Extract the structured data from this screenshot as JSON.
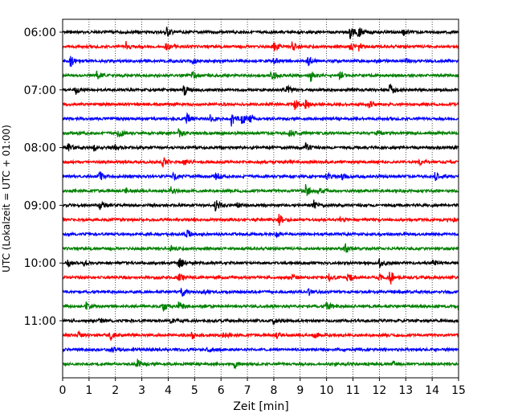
{
  "chart_data": {
    "type": "line",
    "subtype": "helicorder-seismogram",
    "title": "",
    "xlabel": "Zeit  [min]",
    "ylabel": "UTC (Lokalzeit = UTC + 01:00)",
    "xlim": [
      0,
      15
    ],
    "xticks": [
      0,
      1,
      2,
      3,
      4,
      5,
      6,
      7,
      8,
      9,
      10,
      11,
      12,
      13,
      14,
      15
    ],
    "xtick_labels": [
      "0",
      "1",
      "2",
      "3",
      "4",
      "5",
      "6",
      "7",
      "8",
      "9",
      "10",
      "11",
      "12",
      "13",
      "14",
      "15"
    ],
    "ytick_labels": [
      "06:00",
      "07:00",
      "08:00",
      "09:00",
      "10:00",
      "11:00"
    ],
    "ytick_trace_index": [
      0,
      4,
      8,
      12,
      16,
      20
    ],
    "grid": {
      "vertical": true,
      "style": "dotted"
    },
    "trace_interval_minutes": 15,
    "color_cycle": [
      "#000000",
      "#ff0000",
      "#0000ff",
      "#008000"
    ],
    "traces": [
      {
        "start": "06:00",
        "color": "#000000",
        "events": [
          {
            "t": 3.9,
            "a": 1.0
          },
          {
            "t": 10.9,
            "a": 1.1
          },
          {
            "t": 11.2,
            "a": 0.7
          },
          {
            "t": 12.9,
            "a": 0.5
          }
        ]
      },
      {
        "start": "06:15",
        "color": "#ff0000",
        "events": [
          {
            "t": 2.4,
            "a": 0.6
          },
          {
            "t": 3.9,
            "a": 0.6
          },
          {
            "t": 8.0,
            "a": 0.7
          },
          {
            "t": 8.7,
            "a": 0.8
          },
          {
            "t": 10.9,
            "a": 0.6
          },
          {
            "t": 11.2,
            "a": 0.6
          }
        ]
      },
      {
        "start": "06:30",
        "color": "#0000ff",
        "events": [
          {
            "t": 0.3,
            "a": 0.8
          },
          {
            "t": 4.9,
            "a": 0.5
          },
          {
            "t": 8.0,
            "a": 0.5
          },
          {
            "t": 9.3,
            "a": 0.9
          },
          {
            "t": 13.0,
            "a": 0.4
          }
        ]
      },
      {
        "start": "06:45",
        "color": "#008000",
        "events": [
          {
            "t": 1.3,
            "a": 0.6
          },
          {
            "t": 4.9,
            "a": 0.8
          },
          {
            "t": 7.9,
            "a": 1.0
          },
          {
            "t": 9.4,
            "a": 0.8
          },
          {
            "t": 10.5,
            "a": 0.5
          }
        ]
      },
      {
        "start": "07:00",
        "color": "#000000",
        "events": [
          {
            "t": 0.5,
            "a": 0.8
          },
          {
            "t": 4.6,
            "a": 0.9
          },
          {
            "t": 8.5,
            "a": 0.6
          },
          {
            "t": 12.4,
            "a": 0.9
          }
        ]
      },
      {
        "start": "07:15",
        "color": "#ff0000",
        "events": [
          {
            "t": 8.8,
            "a": 0.7
          },
          {
            "t": 9.2,
            "a": 0.6
          },
          {
            "t": 11.6,
            "a": 0.6
          }
        ]
      },
      {
        "start": "07:30",
        "color": "#0000ff",
        "events": [
          {
            "t": 4.7,
            "a": 0.8
          },
          {
            "t": 5.6,
            "a": 0.6
          },
          {
            "t": 6.4,
            "a": 1.0
          },
          {
            "t": 6.8,
            "a": 0.9
          },
          {
            "t": 7.1,
            "a": 0.7
          }
        ]
      },
      {
        "start": "07:45",
        "color": "#008000",
        "events": [
          {
            "t": 2.1,
            "a": 0.8
          },
          {
            "t": 4.4,
            "a": 0.6
          },
          {
            "t": 8.6,
            "a": 0.6
          },
          {
            "t": 11.9,
            "a": 0.5
          }
        ]
      },
      {
        "start": "08:00",
        "color": "#000000",
        "events": [
          {
            "t": 0.2,
            "a": 0.5
          },
          {
            "t": 1.2,
            "a": 0.5
          },
          {
            "t": 2.0,
            "a": 0.4
          },
          {
            "t": 9.2,
            "a": 0.6
          }
        ]
      },
      {
        "start": "08:15",
        "color": "#ff0000",
        "events": [
          {
            "t": 3.8,
            "a": 0.7
          },
          {
            "t": 4.6,
            "a": 0.4
          },
          {
            "t": 13.5,
            "a": 0.4
          }
        ]
      },
      {
        "start": "08:30",
        "color": "#0000ff",
        "events": [
          {
            "t": 1.4,
            "a": 0.7
          },
          {
            "t": 4.2,
            "a": 0.5
          },
          {
            "t": 5.8,
            "a": 0.5
          },
          {
            "t": 10.0,
            "a": 0.6
          },
          {
            "t": 10.6,
            "a": 0.6
          },
          {
            "t": 14.1,
            "a": 0.6
          }
        ]
      },
      {
        "start": "08:45",
        "color": "#008000",
        "events": [
          {
            "t": 2.4,
            "a": 0.4
          },
          {
            "t": 4.1,
            "a": 0.5
          },
          {
            "t": 9.2,
            "a": 0.9
          },
          {
            "t": 9.7,
            "a": 0.5
          }
        ]
      },
      {
        "start": "09:00",
        "color": "#000000",
        "events": [
          {
            "t": 1.4,
            "a": 0.7
          },
          {
            "t": 5.8,
            "a": 1.0
          },
          {
            "t": 9.5,
            "a": 0.8
          },
          {
            "t": 6.6,
            "a": 0.4
          }
        ]
      },
      {
        "start": "09:15",
        "color": "#ff0000",
        "events": [
          {
            "t": 8.2,
            "a": 0.8
          },
          {
            "t": 10.5,
            "a": 0.4
          },
          {
            "t": 14.8,
            "a": 0.3
          }
        ]
      },
      {
        "start": "09:30",
        "color": "#0000ff",
        "events": [
          {
            "t": 4.7,
            "a": 0.6
          },
          {
            "t": 8.1,
            "a": 0.3
          }
        ]
      },
      {
        "start": "09:45",
        "color": "#008000",
        "events": [
          {
            "t": 10.7,
            "a": 0.7
          },
          {
            "t": 4.1,
            "a": 0.4
          }
        ]
      },
      {
        "start": "10:00",
        "color": "#000000",
        "events": [
          {
            "t": 0.2,
            "a": 0.5
          },
          {
            "t": 0.8,
            "a": 0.4
          },
          {
            "t": 4.4,
            "a": 1.0
          },
          {
            "t": 12.0,
            "a": 1.0
          },
          {
            "t": 14.0,
            "a": 0.4
          }
        ]
      },
      {
        "start": "10:15",
        "color": "#ff0000",
        "events": [
          {
            "t": 4.4,
            "a": 0.6
          },
          {
            "t": 8.7,
            "a": 0.5
          },
          {
            "t": 10.1,
            "a": 0.5
          },
          {
            "t": 10.8,
            "a": 0.8
          },
          {
            "t": 12.0,
            "a": 0.5
          },
          {
            "t": 12.4,
            "a": 1.1
          }
        ]
      },
      {
        "start": "10:30",
        "color": "#0000ff",
        "events": [
          {
            "t": 4.5,
            "a": 0.7
          },
          {
            "t": 5.3,
            "a": 0.4
          },
          {
            "t": 9.3,
            "a": 0.4
          }
        ]
      },
      {
        "start": "10:45",
        "color": "#008000",
        "events": [
          {
            "t": 0.9,
            "a": 0.5
          },
          {
            "t": 3.8,
            "a": 0.7
          },
          {
            "t": 4.4,
            "a": 0.6
          },
          {
            "t": 10.0,
            "a": 0.8
          },
          {
            "t": 15.0,
            "a": 0.6
          }
        ]
      },
      {
        "start": "11:00",
        "color": "#000000",
        "events": [
          {
            "t": 1.4,
            "a": 0.4
          },
          {
            "t": 4.1,
            "a": 0.4
          },
          {
            "t": 8.0,
            "a": 0.6
          }
        ]
      },
      {
        "start": "11:15",
        "color": "#ff0000",
        "events": [
          {
            "t": 0.6,
            "a": 0.4
          },
          {
            "t": 1.8,
            "a": 0.8
          },
          {
            "t": 4.9,
            "a": 0.5
          },
          {
            "t": 6.1,
            "a": 0.5
          },
          {
            "t": 8.1,
            "a": 0.5
          },
          {
            "t": 9.5,
            "a": 0.5
          }
        ]
      },
      {
        "start": "11:30",
        "color": "#0000ff",
        "events": [
          {
            "t": 1.9,
            "a": 0.6
          },
          {
            "t": 5.5,
            "a": 0.3
          }
        ]
      },
      {
        "start": "11:45",
        "color": "#008000",
        "events": [
          {
            "t": 2.8,
            "a": 0.8
          },
          {
            "t": 6.5,
            "a": 0.7
          },
          {
            "t": 12.5,
            "a": 0.3
          }
        ]
      }
    ]
  }
}
